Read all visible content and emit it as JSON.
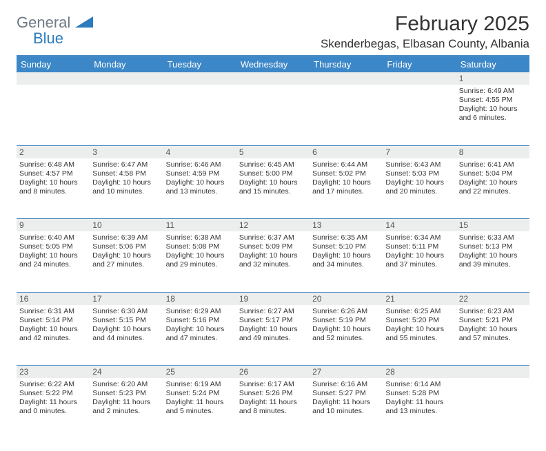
{
  "brand": {
    "name1": "General",
    "name2": "Blue"
  },
  "title": "February 2025",
  "location": "Skenderbegas, Elbasan County, Albania",
  "colors": {
    "header_bar": "#3c87c7",
    "divider": "#4a8bc2",
    "daynum_bg": "#eceded",
    "logo_gray": "#6b7a86",
    "logo_blue": "#2b7bbd",
    "text": "#333333"
  },
  "day_names": [
    "Sunday",
    "Monday",
    "Tuesday",
    "Wednesday",
    "Thursday",
    "Friday",
    "Saturday"
  ],
  "weeks": [
    [
      {
        "n": "",
        "sr": "",
        "ss": "",
        "dl": ""
      },
      {
        "n": "",
        "sr": "",
        "ss": "",
        "dl": ""
      },
      {
        "n": "",
        "sr": "",
        "ss": "",
        "dl": ""
      },
      {
        "n": "",
        "sr": "",
        "ss": "",
        "dl": ""
      },
      {
        "n": "",
        "sr": "",
        "ss": "",
        "dl": ""
      },
      {
        "n": "",
        "sr": "",
        "ss": "",
        "dl": ""
      },
      {
        "n": "1",
        "sr": "Sunrise: 6:49 AM",
        "ss": "Sunset: 4:55 PM",
        "dl": "Daylight: 10 hours and 6 minutes."
      }
    ],
    [
      {
        "n": "2",
        "sr": "Sunrise: 6:48 AM",
        "ss": "Sunset: 4:57 PM",
        "dl": "Daylight: 10 hours and 8 minutes."
      },
      {
        "n": "3",
        "sr": "Sunrise: 6:47 AM",
        "ss": "Sunset: 4:58 PM",
        "dl": "Daylight: 10 hours and 10 minutes."
      },
      {
        "n": "4",
        "sr": "Sunrise: 6:46 AM",
        "ss": "Sunset: 4:59 PM",
        "dl": "Daylight: 10 hours and 13 minutes."
      },
      {
        "n": "5",
        "sr": "Sunrise: 6:45 AM",
        "ss": "Sunset: 5:00 PM",
        "dl": "Daylight: 10 hours and 15 minutes."
      },
      {
        "n": "6",
        "sr": "Sunrise: 6:44 AM",
        "ss": "Sunset: 5:02 PM",
        "dl": "Daylight: 10 hours and 17 minutes."
      },
      {
        "n": "7",
        "sr": "Sunrise: 6:43 AM",
        "ss": "Sunset: 5:03 PM",
        "dl": "Daylight: 10 hours and 20 minutes."
      },
      {
        "n": "8",
        "sr": "Sunrise: 6:41 AM",
        "ss": "Sunset: 5:04 PM",
        "dl": "Daylight: 10 hours and 22 minutes."
      }
    ],
    [
      {
        "n": "9",
        "sr": "Sunrise: 6:40 AM",
        "ss": "Sunset: 5:05 PM",
        "dl": "Daylight: 10 hours and 24 minutes."
      },
      {
        "n": "10",
        "sr": "Sunrise: 6:39 AM",
        "ss": "Sunset: 5:06 PM",
        "dl": "Daylight: 10 hours and 27 minutes."
      },
      {
        "n": "11",
        "sr": "Sunrise: 6:38 AM",
        "ss": "Sunset: 5:08 PM",
        "dl": "Daylight: 10 hours and 29 minutes."
      },
      {
        "n": "12",
        "sr": "Sunrise: 6:37 AM",
        "ss": "Sunset: 5:09 PM",
        "dl": "Daylight: 10 hours and 32 minutes."
      },
      {
        "n": "13",
        "sr": "Sunrise: 6:35 AM",
        "ss": "Sunset: 5:10 PM",
        "dl": "Daylight: 10 hours and 34 minutes."
      },
      {
        "n": "14",
        "sr": "Sunrise: 6:34 AM",
        "ss": "Sunset: 5:11 PM",
        "dl": "Daylight: 10 hours and 37 minutes."
      },
      {
        "n": "15",
        "sr": "Sunrise: 6:33 AM",
        "ss": "Sunset: 5:13 PM",
        "dl": "Daylight: 10 hours and 39 minutes."
      }
    ],
    [
      {
        "n": "16",
        "sr": "Sunrise: 6:31 AM",
        "ss": "Sunset: 5:14 PM",
        "dl": "Daylight: 10 hours and 42 minutes."
      },
      {
        "n": "17",
        "sr": "Sunrise: 6:30 AM",
        "ss": "Sunset: 5:15 PM",
        "dl": "Daylight: 10 hours and 44 minutes."
      },
      {
        "n": "18",
        "sr": "Sunrise: 6:29 AM",
        "ss": "Sunset: 5:16 PM",
        "dl": "Daylight: 10 hours and 47 minutes."
      },
      {
        "n": "19",
        "sr": "Sunrise: 6:27 AM",
        "ss": "Sunset: 5:17 PM",
        "dl": "Daylight: 10 hours and 49 minutes."
      },
      {
        "n": "20",
        "sr": "Sunrise: 6:26 AM",
        "ss": "Sunset: 5:19 PM",
        "dl": "Daylight: 10 hours and 52 minutes."
      },
      {
        "n": "21",
        "sr": "Sunrise: 6:25 AM",
        "ss": "Sunset: 5:20 PM",
        "dl": "Daylight: 10 hours and 55 minutes."
      },
      {
        "n": "22",
        "sr": "Sunrise: 6:23 AM",
        "ss": "Sunset: 5:21 PM",
        "dl": "Daylight: 10 hours and 57 minutes."
      }
    ],
    [
      {
        "n": "23",
        "sr": "Sunrise: 6:22 AM",
        "ss": "Sunset: 5:22 PM",
        "dl": "Daylight: 11 hours and 0 minutes."
      },
      {
        "n": "24",
        "sr": "Sunrise: 6:20 AM",
        "ss": "Sunset: 5:23 PM",
        "dl": "Daylight: 11 hours and 2 minutes."
      },
      {
        "n": "25",
        "sr": "Sunrise: 6:19 AM",
        "ss": "Sunset: 5:24 PM",
        "dl": "Daylight: 11 hours and 5 minutes."
      },
      {
        "n": "26",
        "sr": "Sunrise: 6:17 AM",
        "ss": "Sunset: 5:26 PM",
        "dl": "Daylight: 11 hours and 8 minutes."
      },
      {
        "n": "27",
        "sr": "Sunrise: 6:16 AM",
        "ss": "Sunset: 5:27 PM",
        "dl": "Daylight: 11 hours and 10 minutes."
      },
      {
        "n": "28",
        "sr": "Sunrise: 6:14 AM",
        "ss": "Sunset: 5:28 PM",
        "dl": "Daylight: 11 hours and 13 minutes."
      },
      {
        "n": "",
        "sr": "",
        "ss": "",
        "dl": ""
      }
    ]
  ]
}
